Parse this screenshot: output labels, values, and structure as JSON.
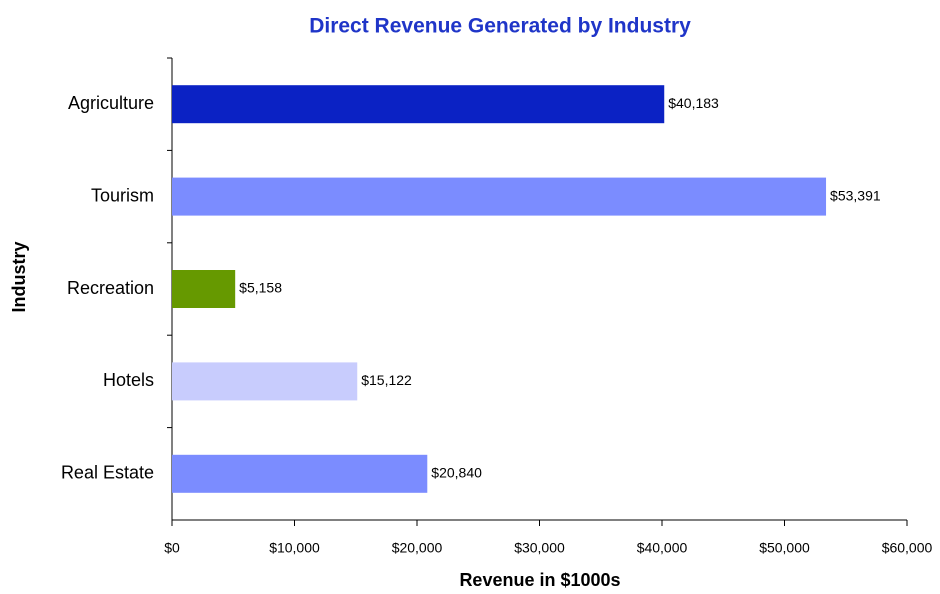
{
  "chart_data": {
    "type": "bar",
    "orientation": "horizontal",
    "title": "Direct Revenue Generated by Industry",
    "x_label": "Revenue in $1000s",
    "y_label": "Industry",
    "categories": [
      "Agriculture",
      "Tourism",
      "Recreation",
      "Hotels",
      "Real Estate"
    ],
    "values": [
      40183,
      53391,
      5158,
      15122,
      20840
    ],
    "value_labels": [
      "$40,183",
      "$53,391",
      "$5,158",
      "$15,122",
      "$20,840"
    ],
    "colors": [
      "#0b22c4",
      "#7b8cff",
      "#669900",
      "#c8ccfd",
      "#7b8cff"
    ],
    "xlim": [
      0,
      60000
    ],
    "xticks": [
      {
        "value": 0,
        "label": "$0"
      },
      {
        "value": 10000,
        "label": "$10,000"
      },
      {
        "value": 20000,
        "label": "$20,000"
      },
      {
        "value": 30000,
        "label": "$30,000"
      },
      {
        "value": 40000,
        "label": "$40,000"
      },
      {
        "value": 50000,
        "label": "$50,000"
      },
      {
        "value": 60000,
        "label": "$60,000"
      }
    ],
    "grid": false
  }
}
